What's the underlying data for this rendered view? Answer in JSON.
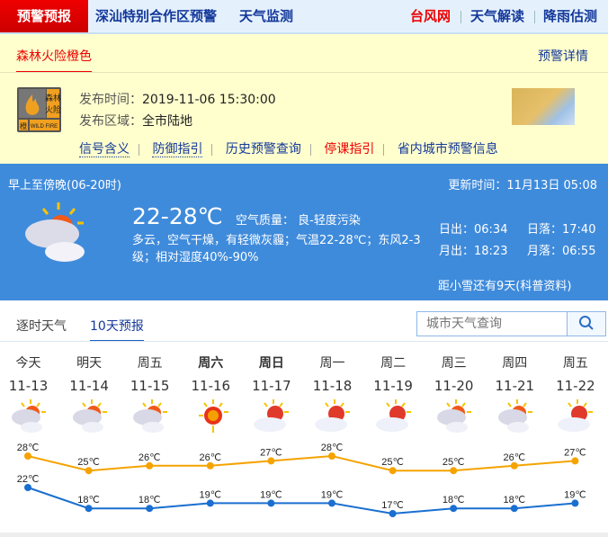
{
  "nav": {
    "items": [
      "预警预报",
      "深汕特别合作区预警",
      "天气监测"
    ],
    "right": [
      "台风网",
      "天气解读",
      "降雨估测"
    ]
  },
  "warning": {
    "tab": "森林火险橙色",
    "detail": "预警详情",
    "badge": {
      "top": "森林火险",
      "bottom_left": "橙",
      "bottom_right": "WILD FIRE"
    },
    "time_label": "发布时间：",
    "time": "2019-11-06 15:30:00",
    "area_label": "发布区域：",
    "area": "全市陆地",
    "links": [
      "信号含义",
      "防御指引",
      "历史预警查询",
      "停课指引",
      "省内城市预警信息"
    ]
  },
  "today": {
    "period": "早上至傍晚(06-20时)",
    "updated": "更新时间：11月13日 05:08",
    "temp": "22-28℃",
    "aq_label": "空气质量：",
    "aq": "良-轻度污染",
    "desc": "多云，空气干燥，有轻微灰霾；气温22-28℃；东风2-3级；相对湿度40%-90%",
    "sunrise": "日出：06:34",
    "sunset": "日落：17:40",
    "moonrise": "月出：18:23",
    "moonset": "月落：06:55",
    "countdown": "距小雪还有9天(科普资料)"
  },
  "tabs": [
    "逐时天气",
    "10天预报"
  ],
  "search": {
    "placeholder": "城市天气查询"
  },
  "colors": {
    "high": "#f5a300",
    "low": "#1a6fd0",
    "accent": "#e00000",
    "blue_panel": "#3f8bdb"
  },
  "chart_data": {
    "type": "line",
    "categories": [
      "今天",
      "明天",
      "周五",
      "周六",
      "周日",
      "周一",
      "周二",
      "周三",
      "周四",
      "周五"
    ],
    "dates": [
      "11-13",
      "11-14",
      "11-15",
      "11-16",
      "11-17",
      "11-18",
      "11-19",
      "11-20",
      "11-21",
      "11-22"
    ],
    "icons": [
      "cloudy",
      "cloudy",
      "cloudy",
      "sunny",
      "partly-cloudy",
      "partly-cloudy",
      "partly-cloudy",
      "cloudy",
      "cloudy",
      "partly-cloudy"
    ],
    "series": [
      {
        "values": [
          28,
          25,
          26,
          26,
          27,
          28,
          25,
          25,
          26,
          27
        ]
      },
      {
        "values": [
          22,
          18,
          18,
          19,
          19,
          19,
          17,
          18,
          18,
          19
        ]
      }
    ],
    "unit": "℃"
  }
}
